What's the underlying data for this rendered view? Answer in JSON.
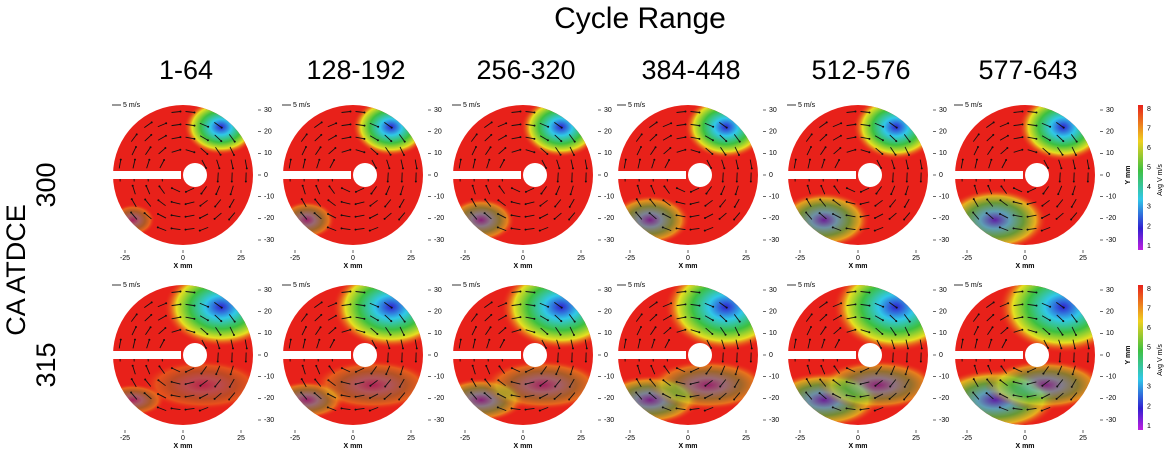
{
  "title": "Cycle Range",
  "row_axis_label": "CA ATDCE",
  "columns": [
    "1-64",
    "128-192",
    "256-320",
    "384-448",
    "512-576",
    "577-643"
  ],
  "rows": [
    "300",
    "315"
  ],
  "panel": {
    "scale_label": "5 m/s",
    "x_label": "X mm",
    "y_label": "Y mm",
    "x_ticks": [
      -25,
      0,
      25
    ],
    "y_ticks": [
      30,
      20,
      10,
      0,
      -10,
      -20,
      -30
    ]
  },
  "colorbar": {
    "label": "Avg V m/s",
    "ticks": [
      8,
      7,
      6,
      5,
      4,
      3,
      2,
      1
    ]
  }
}
